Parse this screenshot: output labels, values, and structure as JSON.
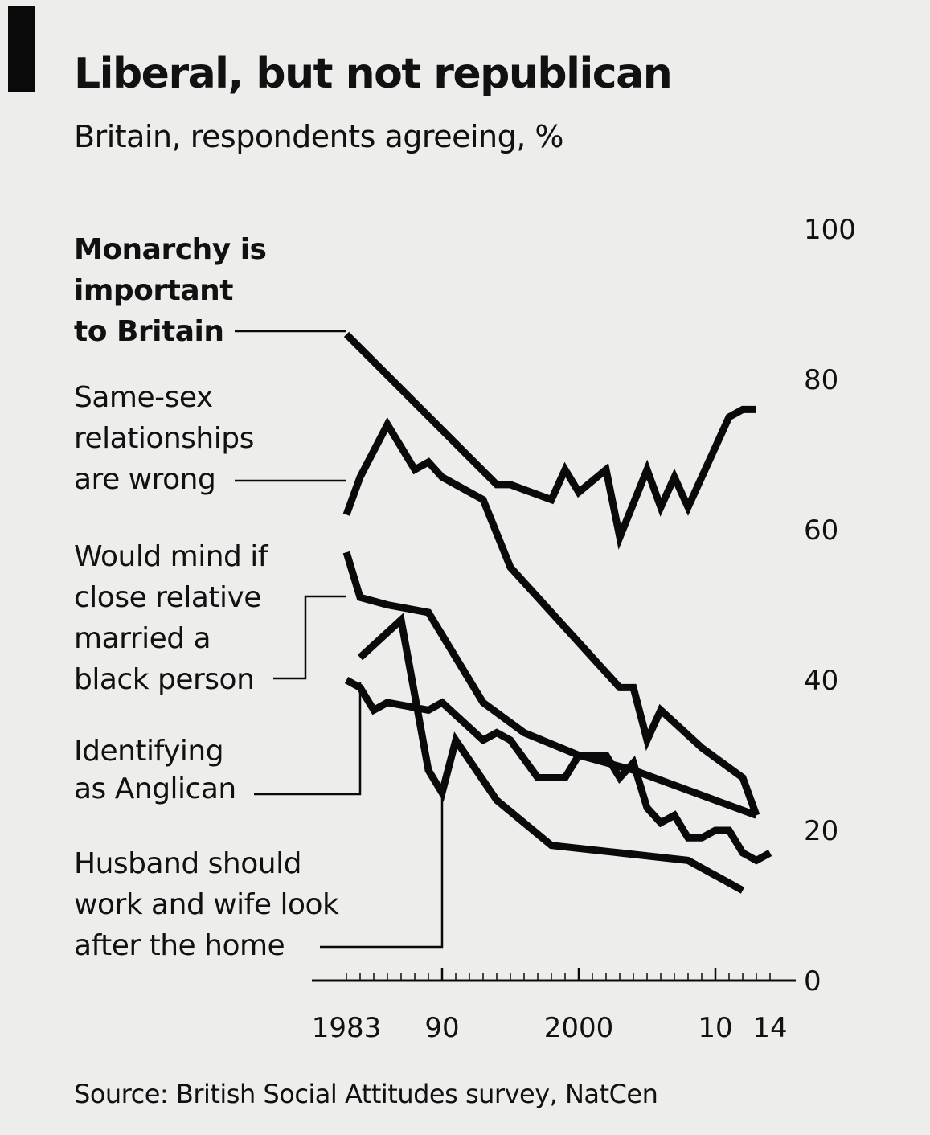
{
  "header": {
    "title": "Liberal, but not republican",
    "subtitle": "Britain, respondents agreeing, %"
  },
  "footer": {
    "source": "Source: British Social Attitudes survey, NatCen"
  },
  "chart_data": {
    "type": "line",
    "title": "Liberal, but not republican",
    "subtitle": "Britain, respondents agreeing, %",
    "xlabel": "",
    "ylabel": "",
    "xlim": [
      1983,
      2014
    ],
    "ylim": [
      0,
      100
    ],
    "x_ticks": [
      {
        "value": 1983,
        "label": "1983"
      },
      {
        "value": 1990,
        "label": "90"
      },
      {
        "value": 2000,
        "label": "2000"
      },
      {
        "value": 2010,
        "label": "10"
      },
      {
        "value": 2014,
        "label": "14"
      }
    ],
    "y_ticks": [
      0,
      20,
      40,
      60,
      80,
      100
    ],
    "grid": false,
    "legend": "labels-left-with-leader-lines",
    "line_color": "#0a0a0a",
    "series": [
      {
        "name": "Monarchy is important to Britain",
        "label_lines": [
          "Monarchy is",
          "important",
          "to Britain"
        ],
        "bold": true,
        "points": [
          [
            1983,
            86
          ],
          [
            1994,
            66
          ],
          [
            1995,
            66
          ],
          [
            1998,
            64
          ],
          [
            1999,
            68
          ],
          [
            2000,
            65
          ],
          [
            2002,
            68
          ],
          [
            2003,
            59
          ],
          [
            2005,
            68
          ],
          [
            2006,
            63
          ],
          [
            2007,
            67
          ],
          [
            2008,
            63
          ],
          [
            2011,
            75
          ],
          [
            2012,
            76
          ],
          [
            2013,
            76
          ]
        ]
      },
      {
        "name": "Same-sex relationships are wrong",
        "label_lines": [
          "Same-sex",
          "relationships",
          "are wrong"
        ],
        "bold": false,
        "points": [
          [
            1983,
            62
          ],
          [
            1984,
            67
          ],
          [
            1986,
            74
          ],
          [
            1987,
            71
          ],
          [
            1988,
            68
          ],
          [
            1989,
            69
          ],
          [
            1990,
            67
          ],
          [
            1993,
            64
          ],
          [
            1995,
            55
          ],
          [
            1998,
            49
          ],
          [
            2000,
            45
          ],
          [
            2003,
            39
          ],
          [
            2004,
            39
          ],
          [
            2005,
            32
          ],
          [
            2006,
            36
          ],
          [
            2009,
            31
          ],
          [
            2012,
            27
          ],
          [
            2013,
            22
          ]
        ]
      },
      {
        "name": "Would mind if close relative married a black person",
        "label_lines": [
          "Would mind if",
          "close relative",
          "married a",
          "black person"
        ],
        "bold": false,
        "points": [
          [
            1983,
            57
          ],
          [
            1984,
            51
          ],
          [
            1986,
            50
          ],
          [
            1989,
            49
          ],
          [
            1993,
            37
          ],
          [
            1996,
            33
          ],
          [
            2000,
            30
          ],
          [
            2004,
            28
          ],
          [
            2013,
            22
          ]
        ]
      },
      {
        "name": "Identifying as Anglican",
        "label_lines": [
          "Identifying",
          "as Anglican"
        ],
        "bold": false,
        "points": [
          [
            1983,
            40
          ],
          [
            1984,
            39
          ],
          [
            1985,
            36
          ],
          [
            1986,
            37
          ],
          [
            1989,
            36
          ],
          [
            1990,
            37
          ],
          [
            1993,
            32
          ],
          [
            1994,
            33
          ],
          [
            1995,
            32
          ],
          [
            1997,
            27
          ],
          [
            1999,
            27
          ],
          [
            2000,
            30
          ],
          [
            2002,
            30
          ],
          [
            2003,
            27
          ],
          [
            2004,
            29
          ],
          [
            2005,
            23
          ],
          [
            2006,
            21
          ],
          [
            2007,
            22
          ],
          [
            2008,
            19
          ],
          [
            2009,
            19
          ],
          [
            2010,
            20
          ],
          [
            2011,
            20
          ],
          [
            2012,
            17
          ],
          [
            2013,
            16
          ],
          [
            2014,
            17
          ]
        ]
      },
      {
        "name": "Husband should work and wife look after the home",
        "label_lines": [
          "Husband should",
          "work and wife look",
          "after the home"
        ],
        "bold": false,
        "points": [
          [
            1984,
            43
          ],
          [
            1987,
            48
          ],
          [
            1988,
            38
          ],
          [
            1989,
            28
          ],
          [
            1990,
            25
          ],
          [
            1991,
            32
          ],
          [
            1994,
            24
          ],
          [
            1998,
            18
          ],
          [
            2003,
            17
          ],
          [
            2008,
            16
          ],
          [
            2012,
            12
          ]
        ]
      }
    ]
  }
}
